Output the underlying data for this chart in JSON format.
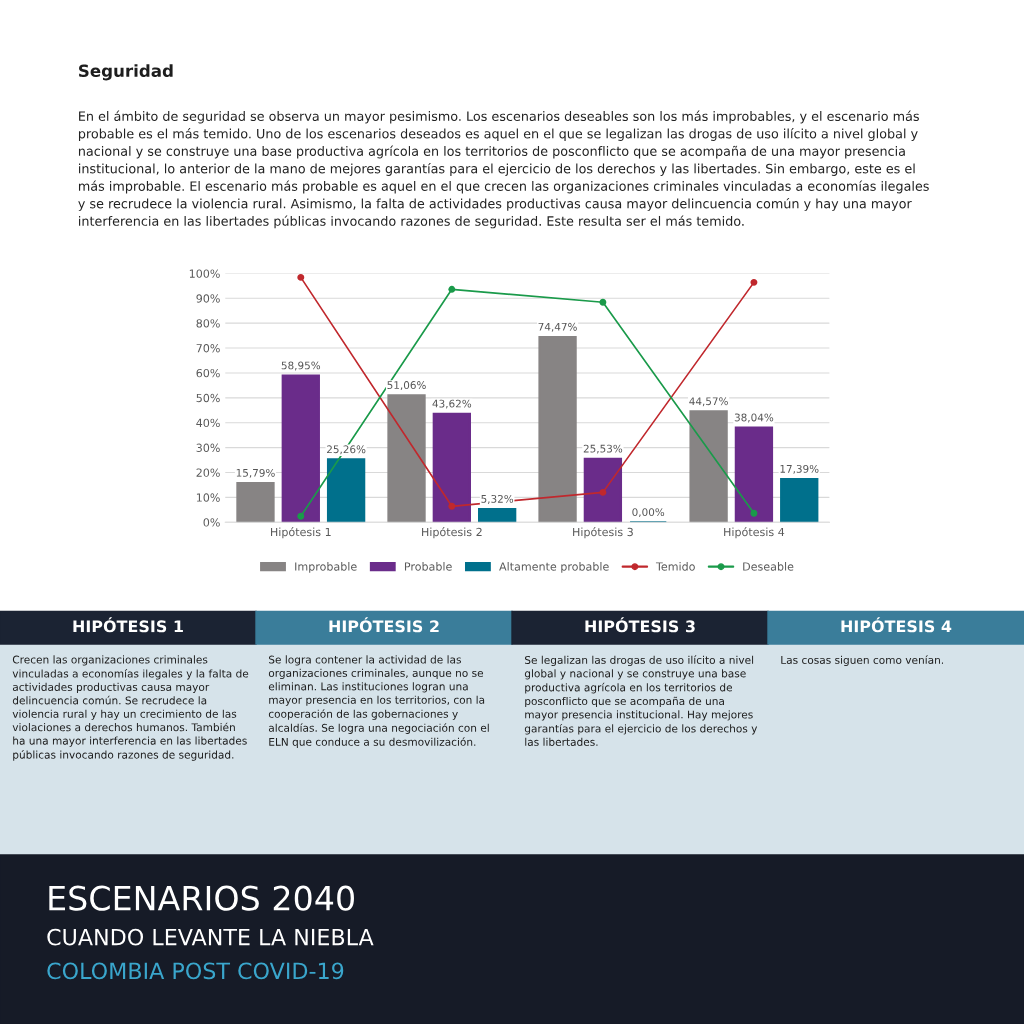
{
  "chart_data": {
    "type": "bar",
    "title": "Seguridad",
    "subtitle": "En el ámbito de seguridad se observa un mayor pesimismo. Los escenarios deseables son los más improbables, y el escenario más\nprobable es el más temido. Uno de los escenarios deseados es aquel en el que se legalizan las drogas de uso ilícito a nivel global y\nnacional y se construye una base productiva agrícola en los territorios de posconflicto que se acompaña de una mayor presencia\ninstitucional, lo anterior de la mano de mejores garantías para el ejercicio de los derechos y las libertades. Sin embargo, este es el\nmás improbable. El escenario más probable es aquel en el que crecen las organizaciones criminales vinculadas a economías ilegales\ny se recrudece la violencia rural. Asimismo, la falta de actividades productivas causa mayor delincuencia común y hay una mayor\ninterferencia en las libertades públicas invocando razones de seguridad. Este resulta ser el más temido.",
    "categories": [
      "Hipótesis 1",
      "Hipótesis 2",
      "Hipótesis 3",
      "Hipótesis 4"
    ],
    "series": [
      {
        "name": "Improbable",
        "color": "#878484",
        "values": [
          15.79,
          51.06,
          74.47,
          44.57
        ],
        "value_labels": [
          "15,79%",
          "51,06%",
          "74,47%",
          "44,57%"
        ]
      },
      {
        "name": "Probable",
        "color": "#6a2c8a",
        "values": [
          58.95,
          43.62,
          25.53,
          38.04
        ],
        "value_labels": [
          "58,95%",
          "43,62%",
          "25,53%",
          "38,04%"
        ]
      },
      {
        "name": "Altamente probable",
        "color": "#00708c",
        "values": [
          25.26,
          5.32,
          0.0,
          17.39
        ],
        "value_labels": [
          "25,26%",
          "5,32%",
          "0,00%",
          "17,39%"
        ]
      },
      {
        "name": "Temido",
        "type": "line",
        "color": "#c0282d",
        "values": [
          98.4,
          6.4,
          12,
          96.4
        ]
      },
      {
        "name": "Deseable",
        "type": "line",
        "color": "#1a9a4a",
        "values": [
          2.4,
          93.6,
          88.4,
          3.6
        ]
      }
    ],
    "ylim": [
      0,
      100
    ],
    "yticks": [
      {
        "value": 0,
        "label": "0%"
      },
      {
        "value": 10,
        "label": "10%"
      },
      {
        "value": 20,
        "label": "20%"
      },
      {
        "value": 30,
        "label": "30%"
      },
      {
        "value": 40,
        "label": "40%"
      },
      {
        "value": 50,
        "label": "50%"
      },
      {
        "value": 60,
        "label": "60%"
      },
      {
        "value": 70,
        "label": "70%"
      },
      {
        "value": 80,
        "label": "80%"
      },
      {
        "value": 90,
        "label": "90%"
      },
      {
        "value": 100,
        "label": "100%"
      }
    ],
    "grid": "y",
    "legend": "bottom",
    "marker": "circle",
    "line_style": "solid",
    "annotations": [
      "HIPÓTESIS 1",
      "HIPÓTESIS 2",
      "HIPÓTESIS 3",
      "HIPÓTESIS 4",
      "Crecen las organizaciones criminales\nvinculadas a economías ilegales y la falta de\nactividades productivas causa mayor\ndelincuencia común. Se recrudece la\nviolencia rural y hay un crecimiento de las\nviolaciones a derechos humanos. También\nha una mayor interferencia en las libertades\npúblicas invocando razones de seguridad.",
      "Se logra contener la actividad de las\norganizaciones criminales, aunque no se\neliminan. Las instituciones logran una\nmayor presencia en los territorios, con la\ncooperación de las gobernaciones y\nalcaldías. Se logra una negociación con el\nELN que conduce a su desmovilización.",
      "Se legalizan las drogas de uso ilícito a nivel\nglobal y nacional y se construye una base\nproductiva agrícola en los territorios de\nposconflicto que se acompaña de una\nmayor presencia institucional. Hay mejores\ngarantías para el ejercicio de los derechos y\nlas libertades.",
      "Las cosas siguen como venían.",
      "ESCENARIOS 2040",
      "CUANDO LEVANTE LA NIEBLA",
      "COLOMBIA POST COVID-19"
    ]
  }
}
